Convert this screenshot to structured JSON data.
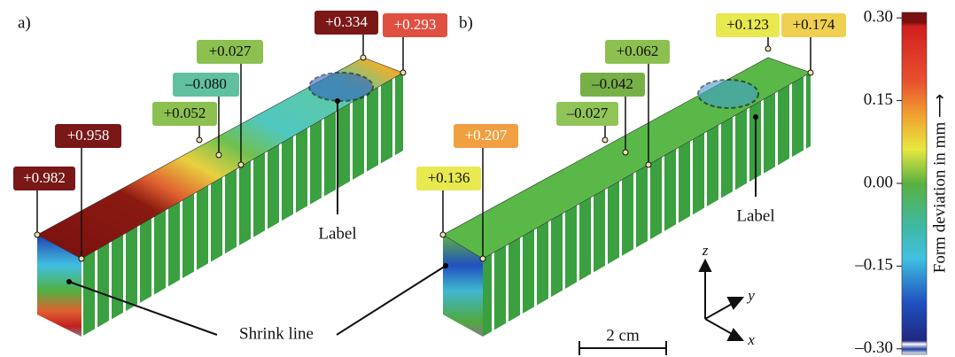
{
  "panel_a": {
    "tag": "a)",
    "annotations": [
      "+0.982",
      "+0.958",
      "+0.052",
      "–0.080",
      "+0.027",
      "+0.334",
      "+0.293"
    ],
    "label_text": "Label"
  },
  "panel_b": {
    "tag": "b)",
    "annotations": [
      "+0.136",
      "+0.207",
      "–0.027",
      "–0.042",
      "+0.062",
      "+0.123",
      "+0.174"
    ],
    "label_text": "Label"
  },
  "shrink_line": "Shrink line",
  "scale_bar": "2 cm",
  "axes": {
    "z": "z",
    "y": "y",
    "x": "x"
  },
  "colorbar": {
    "title": "Form deviation in mm ⟶",
    "lim": [
      -0.31,
      0.31
    ],
    "ticks": [
      {
        "value": 0.3,
        "label": "0.30"
      },
      {
        "value": 0.15,
        "label": "0.15"
      },
      {
        "value": 0,
        "label": "0.00"
      },
      {
        "value": -0.15,
        "label": "–0.15"
      },
      {
        "value": -0.3,
        "label": "–0.30"
      }
    ]
  }
}
